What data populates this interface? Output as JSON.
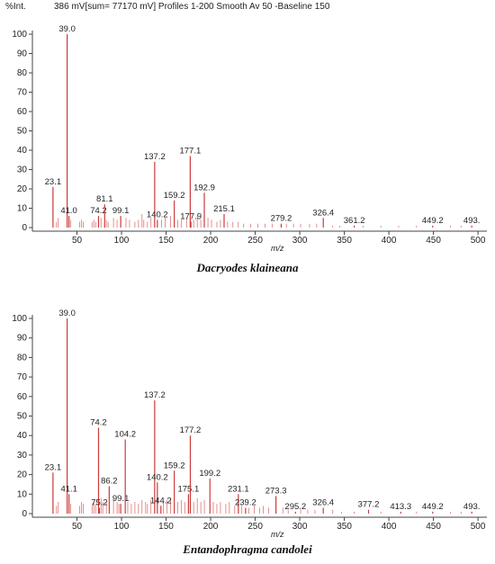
{
  "header": {
    "yunit": "%Int.",
    "info": "386 mV[sum= 77170 mV]  Profiles 1-200 Smooth Av 50 -Baseline 150"
  },
  "colors": {
    "peak": "#cc3a3a",
    "axis": "#444444",
    "text": "#222222"
  },
  "chart_data": [
    {
      "type": "bar",
      "caption": "Dacryodes klaineana",
      "xlabel": "m/z",
      "ylabel": "%Int.",
      "xlim": [
        0,
        510
      ],
      "ylim": [
        0,
        100
      ],
      "xticks": [
        50,
        100,
        150,
        200,
        250,
        300,
        350,
        400,
        450,
        500
      ],
      "xtick_labels": [
        "50",
        "100",
        "150",
        "200",
        "250",
        "300",
        "350",
        "400",
        "450",
        "500"
      ],
      "yticks": [
        0,
        10,
        20,
        30,
        40,
        50,
        60,
        70,
        80,
        90,
        100
      ],
      "ytick_labels": [
        "0",
        "10",
        "20",
        "30",
        "40",
        "50",
        "60",
        "70",
        "80",
        "90",
        "100"
      ],
      "peaks": [
        {
          "mz": 23.1,
          "intensity": 21,
          "label": "23.1"
        },
        {
          "mz": 39.0,
          "intensity": 100,
          "label": "39.0"
        },
        {
          "mz": 41.0,
          "intensity": 6,
          "label": "41.0"
        },
        {
          "mz": 74.2,
          "intensity": 6,
          "label": "74.2"
        },
        {
          "mz": 81.1,
          "intensity": 12,
          "label": "81.1"
        },
        {
          "mz": 99.1,
          "intensity": 6,
          "label": "99.1"
        },
        {
          "mz": 137.2,
          "intensity": 34,
          "label": "137.2"
        },
        {
          "mz": 140.2,
          "intensity": 4,
          "label": "140.2"
        },
        {
          "mz": 159.2,
          "intensity": 14,
          "label": "159.2"
        },
        {
          "mz": 177.1,
          "intensity": 37,
          "label": "177.1"
        },
        {
          "mz": 177.9,
          "intensity": 3,
          "label": "177.9"
        },
        {
          "mz": 192.9,
          "intensity": 18,
          "label": "192.9"
        },
        {
          "mz": 215.1,
          "intensity": 7,
          "label": "215.1"
        },
        {
          "mz": 279.2,
          "intensity": 2,
          "label": "279.2"
        },
        {
          "mz": 326.4,
          "intensity": 5,
          "label": "326.4"
        },
        {
          "mz": 361.2,
          "intensity": 1,
          "label": "361.2"
        },
        {
          "mz": 449.2,
          "intensity": 1,
          "label": "449.2"
        },
        {
          "mz": 493.0,
          "intensity": 1,
          "label": "493."
        }
      ],
      "minor_peaks": [
        [
          27,
          3
        ],
        [
          29,
          5
        ],
        [
          43,
          4
        ],
        [
          53,
          3
        ],
        [
          55,
          4
        ],
        [
          57,
          3
        ],
        [
          67,
          3
        ],
        [
          69,
          4
        ],
        [
          71,
          3
        ],
        [
          77,
          5
        ],
        [
          83,
          4
        ],
        [
          85,
          3
        ],
        [
          91,
          5
        ],
        [
          95,
          4
        ],
        [
          105,
          5
        ],
        [
          109,
          4
        ],
        [
          115,
          3
        ],
        [
          119,
          4
        ],
        [
          123,
          7
        ],
        [
          125,
          4
        ],
        [
          129,
          3
        ],
        [
          133,
          5
        ],
        [
          145,
          4
        ],
        [
          149,
          5
        ],
        [
          155,
          6
        ],
        [
          163,
          4
        ],
        [
          167,
          4
        ],
        [
          173,
          5
        ],
        [
          181,
          4
        ],
        [
          185,
          6
        ],
        [
          189,
          4
        ],
        [
          197,
          5
        ],
        [
          201,
          4
        ],
        [
          207,
          3
        ],
        [
          211,
          4
        ],
        [
          219,
          3
        ],
        [
          225,
          3
        ],
        [
          231,
          3
        ],
        [
          237,
          2
        ],
        [
          245,
          2
        ],
        [
          253,
          2
        ],
        [
          261,
          2
        ],
        [
          269,
          2
        ],
        [
          285,
          2
        ],
        [
          293,
          2
        ],
        [
          301,
          2
        ],
        [
          311,
          2
        ],
        [
          319,
          2
        ],
        [
          337,
          1
        ],
        [
          345,
          1
        ],
        [
          371,
          1
        ],
        [
          391,
          1
        ],
        [
          411,
          1
        ],
        [
          431,
          1
        ],
        [
          469,
          1
        ],
        [
          481,
          1
        ]
      ]
    },
    {
      "type": "bar",
      "caption": "Entandophragma candolei",
      "xlabel": "m/z",
      "ylabel": "%Int.",
      "xlim": [
        0,
        510
      ],
      "ylim": [
        0,
        100
      ],
      "xticks": [
        50,
        100,
        150,
        200,
        250,
        300,
        350,
        400,
        450,
        500
      ],
      "xtick_labels": [
        "50",
        "100",
        "150",
        "200",
        "250",
        "300",
        "350",
        "400",
        "450",
        "500"
      ],
      "yticks": [
        0,
        10,
        20,
        30,
        40,
        50,
        60,
        70,
        80,
        90,
        100
      ],
      "ytick_labels": [
        "0",
        "10",
        "20",
        "30",
        "40",
        "50",
        "60",
        "70",
        "80",
        "90",
        "100"
      ],
      "peaks": [
        {
          "mz": 23.1,
          "intensity": 21,
          "label": "23.1"
        },
        {
          "mz": 39.0,
          "intensity": 100,
          "label": "39.0"
        },
        {
          "mz": 41.1,
          "intensity": 10,
          "label": "41.1"
        },
        {
          "mz": 74.2,
          "intensity": 44,
          "label": "74.2"
        },
        {
          "mz": 75.2,
          "intensity": 3,
          "label": "75.2"
        },
        {
          "mz": 86.2,
          "intensity": 14,
          "label": "86.2"
        },
        {
          "mz": 99.1,
          "intensity": 5,
          "label": "99.1"
        },
        {
          "mz": 104.2,
          "intensity": 38,
          "label": "104.2"
        },
        {
          "mz": 137.2,
          "intensity": 58,
          "label": "137.2"
        },
        {
          "mz": 140.2,
          "intensity": 16,
          "label": "140.2"
        },
        {
          "mz": 144.2,
          "intensity": 4,
          "label": "144.2"
        },
        {
          "mz": 159.2,
          "intensity": 22,
          "label": "159.2"
        },
        {
          "mz": 175.1,
          "intensity": 10,
          "label": "175.1"
        },
        {
          "mz": 177.2,
          "intensity": 40,
          "label": "177.2"
        },
        {
          "mz": 199.2,
          "intensity": 18,
          "label": "199.2"
        },
        {
          "mz": 231.1,
          "intensity": 10,
          "label": "231.1"
        },
        {
          "mz": 239.2,
          "intensity": 3,
          "label": "239.2"
        },
        {
          "mz": 273.3,
          "intensity": 9,
          "label": "273.3"
        },
        {
          "mz": 295.2,
          "intensity": 1,
          "label": "295.2"
        },
        {
          "mz": 326.4,
          "intensity": 3,
          "label": "326.4"
        },
        {
          "mz": 377.2,
          "intensity": 2,
          "label": "377.2"
        },
        {
          "mz": 413.3,
          "intensity": 1,
          "label": "413.3"
        },
        {
          "mz": 449.2,
          "intensity": 1,
          "label": "449.2"
        },
        {
          "mz": 493.0,
          "intensity": 1,
          "label": "493."
        }
      ],
      "minor_peaks": [
        [
          27,
          4
        ],
        [
          29,
          6
        ],
        [
          43,
          5
        ],
        [
          53,
          4
        ],
        [
          55,
          6
        ],
        [
          57,
          5
        ],
        [
          67,
          5
        ],
        [
          69,
          6
        ],
        [
          71,
          5
        ],
        [
          77,
          8
        ],
        [
          79,
          6
        ],
        [
          83,
          6
        ],
        [
          91,
          8
        ],
        [
          95,
          6
        ],
        [
          97,
          5
        ],
        [
          107,
          6
        ],
        [
          111,
          5
        ],
        [
          115,
          6
        ],
        [
          119,
          5
        ],
        [
          123,
          7
        ],
        [
          127,
          6
        ],
        [
          129,
          5
        ],
        [
          133,
          7
        ],
        [
          147,
          6
        ],
        [
          151,
          7
        ],
        [
          155,
          8
        ],
        [
          163,
          6
        ],
        [
          167,
          7
        ],
        [
          171,
          6
        ],
        [
          181,
          6
        ],
        [
          185,
          8
        ],
        [
          189,
          6
        ],
        [
          193,
          7
        ],
        [
          203,
          6
        ],
        [
          207,
          5
        ],
        [
          211,
          6
        ],
        [
          217,
          5
        ],
        [
          221,
          6
        ],
        [
          227,
          4
        ],
        [
          235,
          4
        ],
        [
          243,
          3
        ],
        [
          249,
          4
        ],
        [
          255,
          3
        ],
        [
          259,
          4
        ],
        [
          265,
          3
        ],
        [
          281,
          3
        ],
        [
          287,
          2
        ],
        [
          301,
          2
        ],
        [
          309,
          2
        ],
        [
          317,
          2
        ],
        [
          337,
          2
        ],
        [
          347,
          1
        ],
        [
          361,
          1
        ],
        [
          391,
          1
        ],
        [
          431,
          1
        ],
        [
          469,
          1
        ],
        [
          481,
          1
        ]
      ]
    }
  ]
}
